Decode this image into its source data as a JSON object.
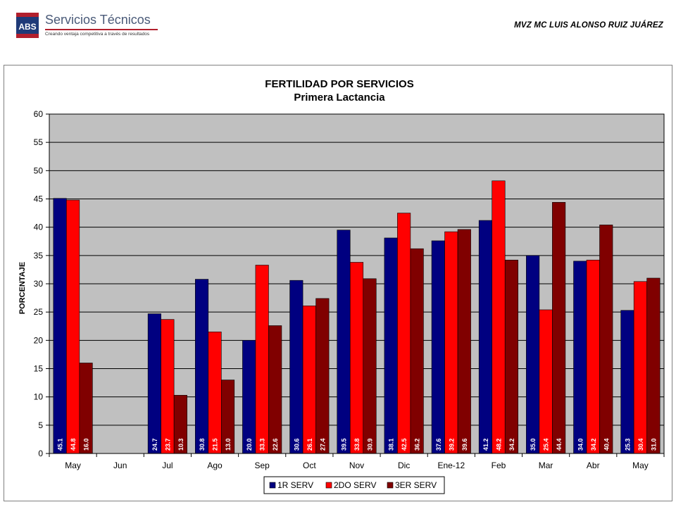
{
  "header": {
    "logo_abbr": "ABS",
    "logo_title": "Servicios Técnicos",
    "logo_tagline": "Creando ventaja competitiva a través de resultados",
    "author": "MVZ MC LUIS ALONSO RUIZ JUÁREZ"
  },
  "colors": {
    "series_1": "#000080",
    "series_2": "#ff0000",
    "series_3": "#800000",
    "plot_background": "#c0c0c0",
    "grid": "#000000",
    "brand_blue": "#1f3a78",
    "brand_red": "#b21f2d"
  },
  "chart_data": {
    "type": "bar",
    "title": "FERTILIDAD POR SERVICIOS",
    "subtitle": "Primera Lactancia",
    "xlabel": "",
    "ylabel": "PORCENTAJE",
    "ylim": [
      0,
      60
    ],
    "yticks": [
      0,
      5,
      10,
      15,
      20,
      25,
      30,
      35,
      40,
      45,
      50,
      55,
      60
    ],
    "grid": true,
    "legend_position": "bottom",
    "categories": [
      "May",
      "Jun",
      "Jul",
      "Ago",
      "Sep",
      "Oct",
      "Nov",
      "Dic",
      "Ene-12",
      "Feb",
      "Mar",
      "Abr",
      "May"
    ],
    "series": [
      {
        "name": "1R SERV",
        "color": "#000080",
        "values": [
          45.1,
          null,
          24.7,
          30.8,
          20.0,
          30.6,
          39.5,
          38.1,
          37.6,
          41.2,
          35.0,
          34.0,
          25.3
        ]
      },
      {
        "name": "2DO SERV",
        "color": "#ff0000",
        "values": [
          44.8,
          null,
          23.7,
          21.5,
          33.3,
          26.1,
          33.8,
          42.5,
          39.2,
          48.2,
          25.4,
          34.2,
          30.4
        ]
      },
      {
        "name": "3ER SERV",
        "color": "#800000",
        "values": [
          16.0,
          null,
          10.3,
          13.0,
          22.6,
          27.4,
          30.9,
          36.2,
          39.6,
          34.2,
          44.4,
          40.4,
          31.0
        ]
      }
    ]
  }
}
